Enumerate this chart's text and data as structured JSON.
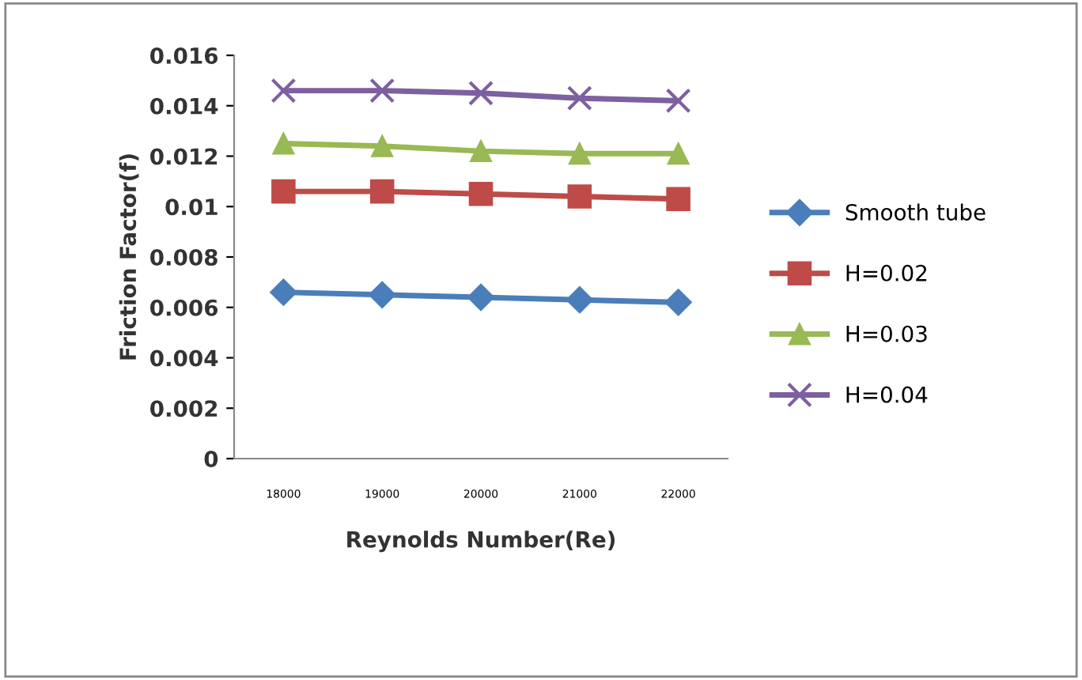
{
  "chart_data": {
    "type": "line",
    "xlabel": "Reynolds Number(Re)",
    "ylabel": "Friction Factor(f)",
    "categories": [
      "18000",
      "19000",
      "20000",
      "21000",
      "22000"
    ],
    "ylim": [
      0,
      0.016
    ],
    "yticks": [
      0,
      0.002,
      0.004,
      0.006,
      0.008,
      0.01,
      0.012,
      0.014,
      0.016
    ],
    "grid": false,
    "legend": "right",
    "series": [
      {
        "name": "Smooth tube",
        "color": "#4a7ebb",
        "marker": "diamond",
        "values": [
          0.0066,
          0.0065,
          0.0064,
          0.0063,
          0.0062
        ]
      },
      {
        "name": "H=0.02",
        "color": "#be4b48",
        "marker": "square",
        "values": [
          0.0106,
          0.0106,
          0.0105,
          0.0104,
          0.0103
        ]
      },
      {
        "name": "H=0.03",
        "color": "#98b954",
        "marker": "triangle",
        "values": [
          0.0125,
          0.0124,
          0.0122,
          0.0121,
          0.0121
        ]
      },
      {
        "name": "H=0.04",
        "color": "#7d60a0",
        "marker": "cross",
        "values": [
          0.0146,
          0.0146,
          0.0145,
          0.0143,
          0.0142
        ]
      }
    ]
  }
}
